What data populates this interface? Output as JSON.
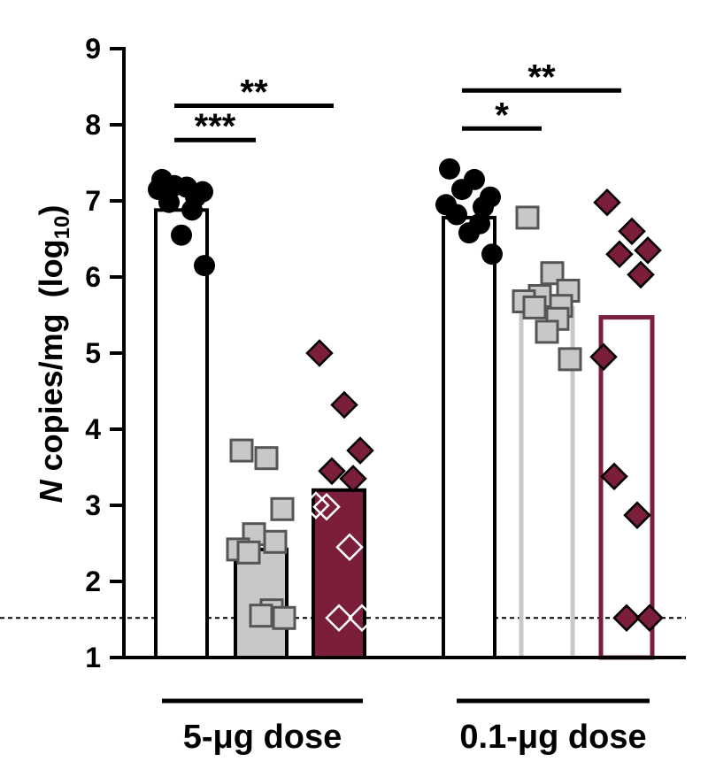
{
  "colors": {
    "axis": "#000000",
    "black_series": "#000000",
    "gray_fill": "#c8c8c8",
    "gray_edge": "#555555",
    "maroon": "#7b1e3a"
  },
  "chart_data": {
    "type": "bar",
    "ylabel_italic": "N",
    "ylabel_main": " copies/mg",
    "ylabel_log_prefix": "(log",
    "ylabel_log_sub": "10",
    "ylabel_log_suffix": ")",
    "ylim": [
      1,
      9
    ],
    "yticks": [
      "1",
      "2",
      "3",
      "4",
      "5",
      "6",
      "7",
      "8",
      "9"
    ],
    "limit_of_detection": 1.52,
    "groups": [
      {
        "label": "5-μg dose",
        "bars": [
          {
            "series": "black-circle",
            "style": "white",
            "value": 6.88,
            "points": [
              7.28,
              7.18,
              7.12,
              7.2,
              7.05,
              7.15,
              6.98,
              6.88,
              6.55,
              6.15
            ]
          },
          {
            "series": "gray-square",
            "style": "gray",
            "value": 2.42,
            "points": [
              3.72,
              3.62,
              2.95,
              2.62,
              2.52,
              2.42,
              2.38,
              1.62,
              1.55,
              1.52
            ]
          },
          {
            "series": "maroon-diamond",
            "style": "maroon",
            "value": 3.2,
            "points": [
              5.0,
              4.32,
              3.72,
              3.45,
              3.35,
              3.0,
              2.98,
              2.45,
              1.52,
              1.52
            ]
          }
        ],
        "sig": [
          {
            "text": "**",
            "from": 0,
            "to": 2,
            "y": 8.25
          },
          {
            "text": "***",
            "from": 0,
            "to": 1,
            "y": 7.8
          }
        ]
      },
      {
        "label": "0.1-μg dose",
        "bars": [
          {
            "series": "black-circle",
            "style": "white",
            "value": 6.78,
            "points": [
              7.42,
              7.28,
              7.05,
              7.15,
              6.92,
              6.95,
              6.82,
              6.7,
              6.58,
              6.3
            ]
          },
          {
            "series": "gray-square",
            "style": "gray-outline",
            "value": 5.62,
            "points": [
              6.78,
              6.05,
              5.82,
              5.75,
              5.62,
              5.68,
              5.6,
              5.45,
              5.28,
              4.92
            ]
          },
          {
            "series": "maroon-diamond",
            "style": "maroon-outline",
            "value": 5.47,
            "points": [
              6.98,
              6.6,
              6.35,
              6.3,
              6.03,
              4.95,
              3.38,
              2.87,
              1.52,
              1.52
            ]
          }
        ],
        "sig": [
          {
            "text": "**",
            "from": 0,
            "to": 2,
            "y": 8.45
          },
          {
            "text": "*",
            "from": 0,
            "to": 1,
            "y": 7.95
          }
        ]
      }
    ]
  }
}
